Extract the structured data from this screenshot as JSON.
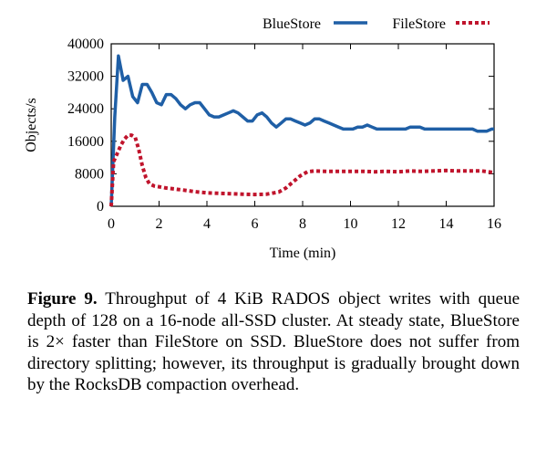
{
  "chart_data": {
    "type": "line",
    "xlabel": "Time (min)",
    "ylabel": "Objects/s",
    "xlim": [
      0,
      16
    ],
    "ylim": [
      0,
      40000
    ],
    "xticks": [
      "0",
      "2",
      "4",
      "6",
      "8",
      "10",
      "12",
      "14",
      "16"
    ],
    "yticks": [
      "0",
      "8000",
      "16000",
      "24000",
      "32000",
      "40000"
    ],
    "grid": false,
    "legend_position": "top",
    "series": [
      {
        "name": "BlueStore",
        "color": "#1f5fa6",
        "style": "solid",
        "x": [
          0,
          0.15,
          0.3,
          0.5,
          0.7,
          0.9,
          1.1,
          1.3,
          1.5,
          1.7,
          1.9,
          2.1,
          2.3,
          2.5,
          2.7,
          2.9,
          3.1,
          3.3,
          3.5,
          3.7,
          3.9,
          4.1,
          4.3,
          4.5,
          4.7,
          4.9,
          5.1,
          5.3,
          5.5,
          5.7,
          5.9,
          6.1,
          6.3,
          6.5,
          6.7,
          6.9,
          7.1,
          7.3,
          7.5,
          7.7,
          7.9,
          8.1,
          8.3,
          8.5,
          8.7,
          8.9,
          9.1,
          9.3,
          9.5,
          9.7,
          9.9,
          10.1,
          10.3,
          10.5,
          10.7,
          10.9,
          11.1,
          11.3,
          11.5,
          11.7,
          11.9,
          12.1,
          12.3,
          12.5,
          12.7,
          12.9,
          13.1,
          13.3,
          13.5,
          13.7,
          13.9,
          14.1,
          14.3,
          14.5,
          14.7,
          14.9,
          15.1,
          15.3,
          15.5,
          15.7,
          15.9,
          16
        ],
        "y": [
          0,
          22000,
          37000,
          31000,
          32000,
          27000,
          25500,
          30000,
          30000,
          28000,
          25500,
          25000,
          27500,
          27500,
          26500,
          25000,
          24000,
          25000,
          25500,
          25500,
          24000,
          22500,
          22000,
          22000,
          22500,
          23000,
          23500,
          23000,
          22000,
          21000,
          21000,
          22500,
          23000,
          22000,
          20500,
          19500,
          20500,
          21500,
          21500,
          21000,
          20500,
          20000,
          20500,
          21500,
          21500,
          21000,
          20500,
          20000,
          19500,
          19000,
          19000,
          19000,
          19500,
          19500,
          20000,
          19500,
          19000,
          19000,
          19000,
          19000,
          19000,
          19000,
          19000,
          19500,
          19500,
          19500,
          19000,
          19000,
          19000,
          19000,
          19000,
          19000,
          19000,
          19000,
          19000,
          19000,
          19000,
          18500,
          18500,
          18500,
          19000,
          19000
        ]
      },
      {
        "name": "FileStore",
        "color": "#c0142c",
        "style": "dotted",
        "x": [
          0,
          0.1,
          0.25,
          0.4,
          0.55,
          0.7,
          0.85,
          1.0,
          1.15,
          1.3,
          1.45,
          1.6,
          1.8,
          2.0,
          2.3,
          2.6,
          3.0,
          3.5,
          4.0,
          4.5,
          5.0,
          5.5,
          6.0,
          6.5,
          7.0,
          7.3,
          7.6,
          7.9,
          8.2,
          8.5,
          9.0,
          9.5,
          10.0,
          10.5,
          11.0,
          11.5,
          12.0,
          12.5,
          13.0,
          13.5,
          14.0,
          14.5,
          15.0,
          15.5,
          16.0
        ],
        "y": [
          0,
          11000,
          13000,
          15000,
          16500,
          17500,
          17500,
          17000,
          14000,
          10000,
          7000,
          5500,
          5000,
          4800,
          4500,
          4300,
          4000,
          3600,
          3300,
          3200,
          3100,
          3000,
          2900,
          3000,
          3500,
          4500,
          6000,
          7500,
          8500,
          8700,
          8600,
          8600,
          8600,
          8600,
          8500,
          8600,
          8500,
          8700,
          8600,
          8700,
          8800,
          8700,
          8700,
          8700,
          8300
        ]
      }
    ]
  },
  "caption": {
    "label": "Figure 9.",
    "text": " Throughput of 4 KiB RADOS object writes with queue depth of 128 on a 16-node all-SSD cluster. At steady state, BlueStore is 2× faster than FileStore on SSD. BlueStore does not suffer from directory splitting; however, its throughput is gradually brought down by the RocksDB compaction overhead."
  }
}
